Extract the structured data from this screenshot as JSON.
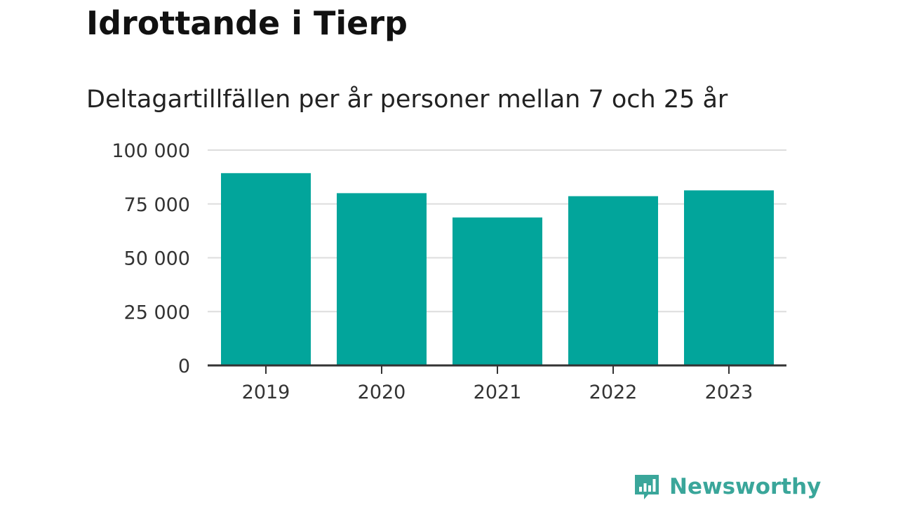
{
  "header": {
    "title": "Idrottande i Tierp",
    "subtitle": "Deltagartillfällen per år personer mellan 7 och 25 år"
  },
  "chart_data": {
    "type": "bar",
    "categories": [
      "2019",
      "2020",
      "2021",
      "2022",
      "2023"
    ],
    "values": [
      89300,
      80000,
      68700,
      78600,
      81300
    ],
    "ylim": [
      0,
      100000
    ],
    "yticks": [
      0,
      25000,
      50000,
      75000,
      100000
    ],
    "ytick_labels": [
      "0",
      "25 000",
      "50 000",
      "75 000",
      "100 000"
    ],
    "grid": true,
    "bar_color": "#02a59b",
    "grid_color": "#dddddd",
    "axis_color": "#333333"
  },
  "branding": {
    "name": "Newsworthy",
    "color": "#3aa69a",
    "icon": "newsworthy-logo-icon"
  }
}
